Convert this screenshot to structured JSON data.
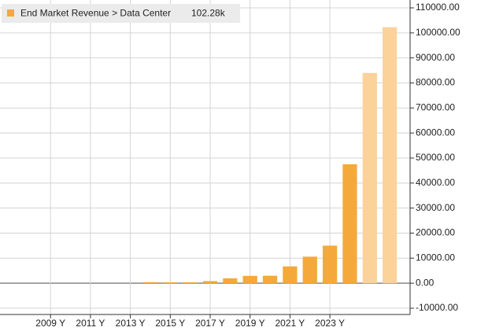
{
  "chart_data": {
    "type": "bar",
    "legend_label": "End Market Revenue > Data Center",
    "legend_value_label": "102.28k",
    "categories": [
      null,
      null,
      "2009 Y",
      null,
      "2011 Y",
      null,
      "2013 Y",
      null,
      "2015 Y",
      null,
      "2017 Y",
      null,
      "2019 Y",
      null,
      "2021 Y",
      null,
      "2023 Y",
      null,
      null,
      null
    ],
    "values": [
      null,
      null,
      null,
      null,
      null,
      null,
      null,
      400,
      340,
      340,
      830,
      1930,
      2930,
      2980,
      6700,
      10600,
      15000,
      47500,
      84000,
      102280
    ],
    "value_labels": [
      null,
      null,
      null,
      null,
      null,
      null,
      null,
      null,
      null,
      null,
      null,
      null,
      null,
      null,
      null,
      null,
      null,
      null,
      null,
      "102.28k"
    ],
    "bar_colors": [
      "#f5a93a",
      "#f5a93a",
      "#f5a93a",
      "#f5a93a",
      "#f5a93a",
      "#f5a93a",
      "#f5a93a",
      "#f5a93a",
      "#f5a93a",
      "#f5a93a",
      "#f5a93a",
      "#f5a93a",
      "#f5a93a",
      "#f5a93a",
      "#f5a93a",
      "#f5a93a",
      "#f5a93a",
      "#f5a93a",
      "#fbd29a",
      "#fbd29a"
    ],
    "legend_color": "#f5a93a",
    "ylim": [
      -10000,
      110000
    ],
    "yticks": [
      {
        "value": -10000,
        "label": "-10000.00"
      },
      {
        "value": 0,
        "label": "0.00"
      },
      {
        "value": 10000,
        "label": "10000.00"
      },
      {
        "value": 20000,
        "label": "20000.00"
      },
      {
        "value": 30000,
        "label": "30000.00"
      },
      {
        "value": 40000,
        "label": "40000.00"
      },
      {
        "value": 50000,
        "label": "50000.00"
      },
      {
        "value": 60000,
        "label": "60000.00"
      },
      {
        "value": 70000,
        "label": "70000.00"
      },
      {
        "value": 80000,
        "label": "80000.00"
      },
      {
        "value": 90000,
        "label": "90000.00"
      },
      {
        "value": 100000,
        "label": "100000.00"
      },
      {
        "value": 110000,
        "label": "110000.00"
      }
    ],
    "y_axis_side": "right",
    "grid": true
  }
}
